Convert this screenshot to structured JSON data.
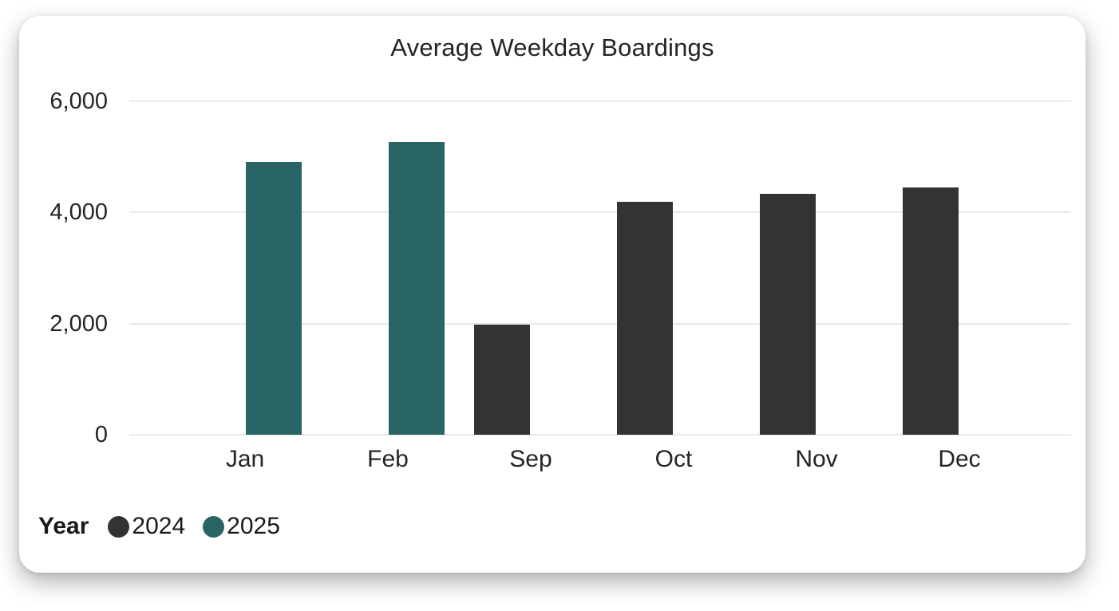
{
  "chart_data": {
    "type": "bar",
    "title": "Average Weekday Boardings",
    "categories": [
      "Jan",
      "Feb",
      "Sep",
      "Oct",
      "Nov",
      "Dec"
    ],
    "series": [
      {
        "name": "2024",
        "color": "#333333",
        "values": [
          null,
          null,
          1980,
          4190,
          4330,
          4450
        ]
      },
      {
        "name": "2025",
        "color": "#2A6566",
        "values": [
          4910,
          5270,
          null,
          null,
          null,
          null
        ]
      }
    ],
    "ylim": [
      0,
      6000
    ],
    "yticks": [
      0,
      2000,
      4000,
      6000
    ],
    "ytick_labels": [
      "0",
      "2,000",
      "4,000",
      "6,000"
    ],
    "grid": "horizontal",
    "legend_title": "Year",
    "legend_position": "bottom-left"
  },
  "colors": {
    "bar_2024": "#333333",
    "bar_2025": "#2A6566",
    "gridline": "#E9E9E9",
    "text": "#252423",
    "card_background": "#ffffff"
  }
}
